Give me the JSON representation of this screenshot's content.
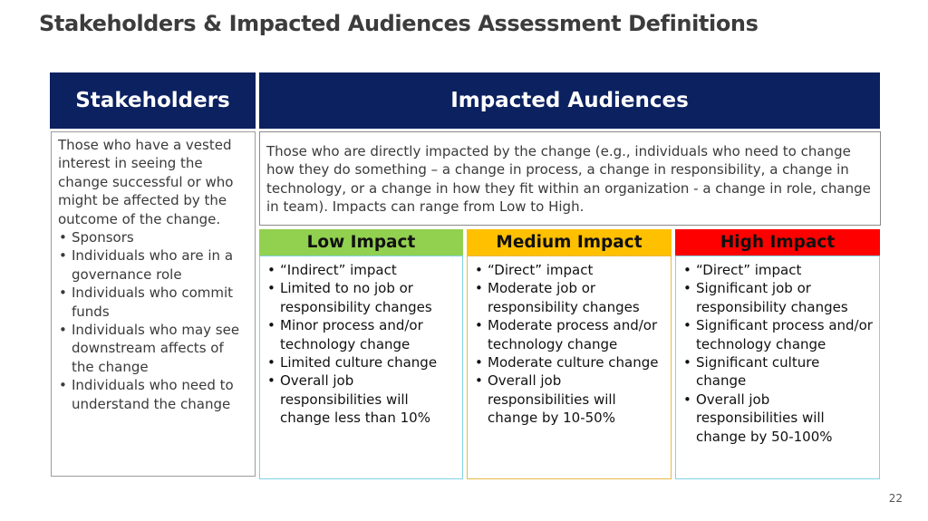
{
  "title": "Stakeholders & Impacted Audiences Assessment Definitions",
  "stakeholders": {
    "header": "Stakeholders",
    "intro": "Those who have a vested interest in seeing the change successful or who might be affected by the outcome of the change.",
    "items": [
      "Sponsors",
      "Individuals who are in a governance role",
      "Individuals who commit funds",
      "Individuals who may see downstream affects of the change",
      "Individuals who need to understand the change"
    ]
  },
  "impacted": {
    "header": "Impacted Audiences",
    "description": "Those who are directly impacted by the change (e.g., individuals who need to change how they do something – a change in process, a change in responsibility, a change in technology, or a change in how they fit within an organization - a change in role, change in team).  Impacts can range from Low to High.",
    "levels": [
      {
        "label": "Low Impact",
        "color": "#92d050",
        "items": [
          "“Indirect” impact",
          "Limited to no job or responsibility changes",
          "Minor process and/or technology change",
          "Limited culture change",
          "Overall job responsibilities will change less than 10%"
        ]
      },
      {
        "label": "Medium Impact",
        "color": "#ffc000",
        "items": [
          "“Direct” impact",
          "Moderate job or responsibility changes",
          "Moderate process and/or technology change",
          "Moderate culture change",
          "Overall job responsibilities will change by 10-50%"
        ]
      },
      {
        "label": "High Impact",
        "color": "#ff0000",
        "items": [
          "“Direct” impact",
          "Significant job or responsibility changes",
          "Significant process and/or technology change",
          "Significant culture change",
          "Overall job responsibilities will change by 50-100%"
        ]
      }
    ]
  },
  "page_number": "22"
}
